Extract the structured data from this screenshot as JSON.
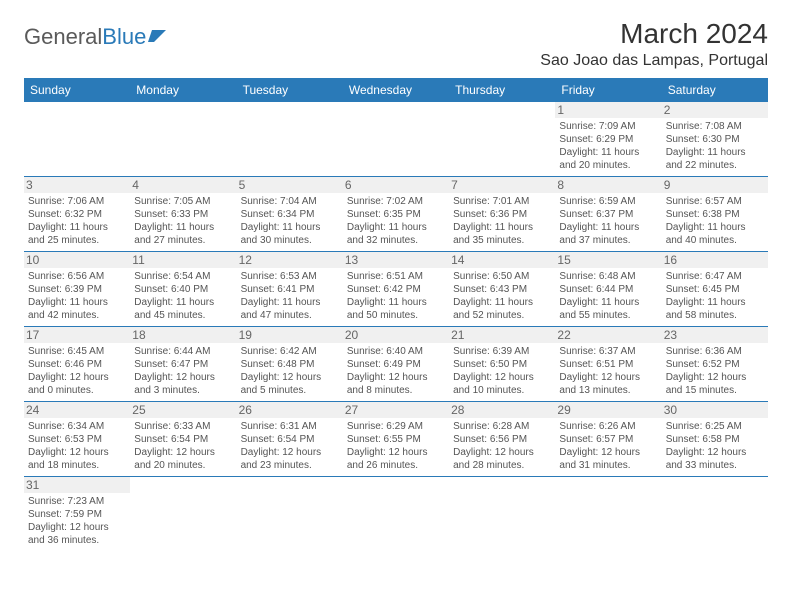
{
  "logo": {
    "text1": "General",
    "text2": "Blue"
  },
  "title": "March 2024",
  "location": "Sao Joao das Lampas, Portugal",
  "colors": {
    "header_bg": "#2a7ab8",
    "header_text": "#ffffff",
    "border": "#2a7ab8",
    "daynum_bg": "#f0f0f0",
    "daynum_text": "#666666",
    "info_text": "#555555",
    "title_text": "#333333"
  },
  "weekdays": [
    "Sunday",
    "Monday",
    "Tuesday",
    "Wednesday",
    "Thursday",
    "Friday",
    "Saturday"
  ],
  "weeks": [
    [
      null,
      null,
      null,
      null,
      null,
      {
        "n": "1",
        "sr": "Sunrise: 7:09 AM",
        "ss": "Sunset: 6:29 PM",
        "d1": "Daylight: 11 hours",
        "d2": "and 20 minutes."
      },
      {
        "n": "2",
        "sr": "Sunrise: 7:08 AM",
        "ss": "Sunset: 6:30 PM",
        "d1": "Daylight: 11 hours",
        "d2": "and 22 minutes."
      }
    ],
    [
      {
        "n": "3",
        "sr": "Sunrise: 7:06 AM",
        "ss": "Sunset: 6:32 PM",
        "d1": "Daylight: 11 hours",
        "d2": "and 25 minutes."
      },
      {
        "n": "4",
        "sr": "Sunrise: 7:05 AM",
        "ss": "Sunset: 6:33 PM",
        "d1": "Daylight: 11 hours",
        "d2": "and 27 minutes."
      },
      {
        "n": "5",
        "sr": "Sunrise: 7:04 AM",
        "ss": "Sunset: 6:34 PM",
        "d1": "Daylight: 11 hours",
        "d2": "and 30 minutes."
      },
      {
        "n": "6",
        "sr": "Sunrise: 7:02 AM",
        "ss": "Sunset: 6:35 PM",
        "d1": "Daylight: 11 hours",
        "d2": "and 32 minutes."
      },
      {
        "n": "7",
        "sr": "Sunrise: 7:01 AM",
        "ss": "Sunset: 6:36 PM",
        "d1": "Daylight: 11 hours",
        "d2": "and 35 minutes."
      },
      {
        "n": "8",
        "sr": "Sunrise: 6:59 AM",
        "ss": "Sunset: 6:37 PM",
        "d1": "Daylight: 11 hours",
        "d2": "and 37 minutes."
      },
      {
        "n": "9",
        "sr": "Sunrise: 6:57 AM",
        "ss": "Sunset: 6:38 PM",
        "d1": "Daylight: 11 hours",
        "d2": "and 40 minutes."
      }
    ],
    [
      {
        "n": "10",
        "sr": "Sunrise: 6:56 AM",
        "ss": "Sunset: 6:39 PM",
        "d1": "Daylight: 11 hours",
        "d2": "and 42 minutes."
      },
      {
        "n": "11",
        "sr": "Sunrise: 6:54 AM",
        "ss": "Sunset: 6:40 PM",
        "d1": "Daylight: 11 hours",
        "d2": "and 45 minutes."
      },
      {
        "n": "12",
        "sr": "Sunrise: 6:53 AM",
        "ss": "Sunset: 6:41 PM",
        "d1": "Daylight: 11 hours",
        "d2": "and 47 minutes."
      },
      {
        "n": "13",
        "sr": "Sunrise: 6:51 AM",
        "ss": "Sunset: 6:42 PM",
        "d1": "Daylight: 11 hours",
        "d2": "and 50 minutes."
      },
      {
        "n": "14",
        "sr": "Sunrise: 6:50 AM",
        "ss": "Sunset: 6:43 PM",
        "d1": "Daylight: 11 hours",
        "d2": "and 52 minutes."
      },
      {
        "n": "15",
        "sr": "Sunrise: 6:48 AM",
        "ss": "Sunset: 6:44 PM",
        "d1": "Daylight: 11 hours",
        "d2": "and 55 minutes."
      },
      {
        "n": "16",
        "sr": "Sunrise: 6:47 AM",
        "ss": "Sunset: 6:45 PM",
        "d1": "Daylight: 11 hours",
        "d2": "and 58 minutes."
      }
    ],
    [
      {
        "n": "17",
        "sr": "Sunrise: 6:45 AM",
        "ss": "Sunset: 6:46 PM",
        "d1": "Daylight: 12 hours",
        "d2": "and 0 minutes."
      },
      {
        "n": "18",
        "sr": "Sunrise: 6:44 AM",
        "ss": "Sunset: 6:47 PM",
        "d1": "Daylight: 12 hours",
        "d2": "and 3 minutes."
      },
      {
        "n": "19",
        "sr": "Sunrise: 6:42 AM",
        "ss": "Sunset: 6:48 PM",
        "d1": "Daylight: 12 hours",
        "d2": "and 5 minutes."
      },
      {
        "n": "20",
        "sr": "Sunrise: 6:40 AM",
        "ss": "Sunset: 6:49 PM",
        "d1": "Daylight: 12 hours",
        "d2": "and 8 minutes."
      },
      {
        "n": "21",
        "sr": "Sunrise: 6:39 AM",
        "ss": "Sunset: 6:50 PM",
        "d1": "Daylight: 12 hours",
        "d2": "and 10 minutes."
      },
      {
        "n": "22",
        "sr": "Sunrise: 6:37 AM",
        "ss": "Sunset: 6:51 PM",
        "d1": "Daylight: 12 hours",
        "d2": "and 13 minutes."
      },
      {
        "n": "23",
        "sr": "Sunrise: 6:36 AM",
        "ss": "Sunset: 6:52 PM",
        "d1": "Daylight: 12 hours",
        "d2": "and 15 minutes."
      }
    ],
    [
      {
        "n": "24",
        "sr": "Sunrise: 6:34 AM",
        "ss": "Sunset: 6:53 PM",
        "d1": "Daylight: 12 hours",
        "d2": "and 18 minutes."
      },
      {
        "n": "25",
        "sr": "Sunrise: 6:33 AM",
        "ss": "Sunset: 6:54 PM",
        "d1": "Daylight: 12 hours",
        "d2": "and 20 minutes."
      },
      {
        "n": "26",
        "sr": "Sunrise: 6:31 AM",
        "ss": "Sunset: 6:54 PM",
        "d1": "Daylight: 12 hours",
        "d2": "and 23 minutes."
      },
      {
        "n": "27",
        "sr": "Sunrise: 6:29 AM",
        "ss": "Sunset: 6:55 PM",
        "d1": "Daylight: 12 hours",
        "d2": "and 26 minutes."
      },
      {
        "n": "28",
        "sr": "Sunrise: 6:28 AM",
        "ss": "Sunset: 6:56 PM",
        "d1": "Daylight: 12 hours",
        "d2": "and 28 minutes."
      },
      {
        "n": "29",
        "sr": "Sunrise: 6:26 AM",
        "ss": "Sunset: 6:57 PM",
        "d1": "Daylight: 12 hours",
        "d2": "and 31 minutes."
      },
      {
        "n": "30",
        "sr": "Sunrise: 6:25 AM",
        "ss": "Sunset: 6:58 PM",
        "d1": "Daylight: 12 hours",
        "d2": "and 33 minutes."
      }
    ],
    [
      {
        "n": "31",
        "sr": "Sunrise: 7:23 AM",
        "ss": "Sunset: 7:59 PM",
        "d1": "Daylight: 12 hours",
        "d2": "and 36 minutes."
      },
      null,
      null,
      null,
      null,
      null,
      null
    ]
  ]
}
